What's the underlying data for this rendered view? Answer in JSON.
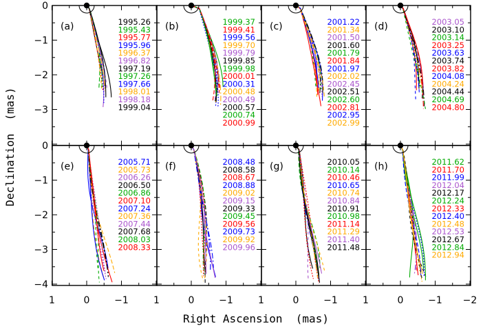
{
  "figure": {
    "xlabel": "Right Ascension  (mas)",
    "ylabel": "Declination  (mas)"
  },
  "chart_data": {
    "type": "line",
    "x_axis": {
      "label": "Right Ascension  (mas)",
      "range": [
        1,
        -2
      ],
      "reversed": true,
      "ticks": [
        1,
        0,
        -1,
        -2
      ],
      "tick_labels_per_panel": [
        "1",
        "0",
        "-1"
      ],
      "last_tick_label": "-2"
    },
    "y_axis": {
      "label": "Declination  (mas)",
      "top_row_range": [
        -4,
        0
      ],
      "bottom_row_range": [
        -4,
        0
      ],
      "ticks_top": [
        0,
        -1,
        -2,
        -3
      ],
      "ticks_bottom": [
        0,
        -1,
        -2,
        -3,
        -4
      ]
    },
    "core_marker": {
      "x": 0,
      "y": 0,
      "shape": "filled-circle-with-semicircle"
    },
    "grid": false,
    "panels": [
      {
        "id": "a",
        "label": "(a)",
        "epochs": [
          {
            "t": "1995.26",
            "color": "#000000"
          },
          {
            "t": "1995.43",
            "color": "#00aa00"
          },
          {
            "t": "1995.77",
            "color": "#ff0000"
          },
          {
            "t": "1995.96",
            "color": "#0000ff"
          },
          {
            "t": "1996.37",
            "color": "#ffaa00"
          },
          {
            "t": "1996.82",
            "color": "#aa55cc"
          },
          {
            "t": "1997.19",
            "color": "#000000"
          },
          {
            "t": "1997.26",
            "color": "#00aa00"
          },
          {
            "t": "1997.66",
            "color": "#0000ff"
          },
          {
            "t": "1998.01",
            "color": "#ffaa00"
          },
          {
            "t": "1998.18",
            "color": "#aa55cc"
          },
          {
            "t": "1999.04",
            "color": "#000000"
          }
        ]
      },
      {
        "id": "b",
        "label": "(b)",
        "epochs": [
          {
            "t": "1999.37",
            "color": "#00aa00"
          },
          {
            "t": "1999.41",
            "color": "#ff0000"
          },
          {
            "t": "1999.56",
            "color": "#0000ff"
          },
          {
            "t": "1999.70",
            "color": "#ffaa00"
          },
          {
            "t": "1999.79",
            "color": "#aa55cc"
          },
          {
            "t": "1999.85",
            "color": "#000000"
          },
          {
            "t": "1999.98",
            "color": "#00aa00"
          },
          {
            "t": "2000.01",
            "color": "#ff0000"
          },
          {
            "t": "2000.31",
            "color": "#0000ff"
          },
          {
            "t": "2000.48",
            "color": "#ffaa00"
          },
          {
            "t": "2000.49",
            "color": "#aa55cc"
          },
          {
            "t": "2000.57",
            "color": "#000000"
          },
          {
            "t": "2000.74",
            "color": "#00aa00"
          },
          {
            "t": "2000.99",
            "color": "#ff0000"
          }
        ]
      },
      {
        "id": "c",
        "label": "(c)",
        "epochs": [
          {
            "t": "2001.22",
            "color": "#0000ff"
          },
          {
            "t": "2001.34",
            "color": "#ffaa00"
          },
          {
            "t": "2001.50",
            "color": "#aa55cc"
          },
          {
            "t": "2001.60",
            "color": "#000000"
          },
          {
            "t": "2001.79",
            "color": "#00aa00"
          },
          {
            "t": "2001.84",
            "color": "#ff0000"
          },
          {
            "t": "2001.97",
            "color": "#0000ff"
          },
          {
            "t": "2002.02",
            "color": "#ffaa00"
          },
          {
            "t": "2002.45",
            "color": "#aa55cc"
          },
          {
            "t": "2002.51",
            "color": "#000000"
          },
          {
            "t": "2002.60",
            "color": "#00aa00"
          },
          {
            "t": "2002.81",
            "color": "#ff0000"
          },
          {
            "t": "2002.95",
            "color": "#0000ff"
          },
          {
            "t": "2002.99",
            "color": "#ffaa00"
          }
        ]
      },
      {
        "id": "d",
        "label": "(d)",
        "epochs": [
          {
            "t": "2003.05",
            "color": "#aa55cc"
          },
          {
            "t": "2003.10",
            "color": "#000000"
          },
          {
            "t": "2003.14",
            "color": "#00aa00"
          },
          {
            "t": "2003.25",
            "color": "#ff0000"
          },
          {
            "t": "2003.63",
            "color": "#0000ff"
          },
          {
            "t": "2003.74",
            "color": "#000000"
          },
          {
            "t": "2003.82",
            "color": "#ff0000"
          },
          {
            "t": "2004.08",
            "color": "#0000ff"
          },
          {
            "t": "2004.24",
            "color": "#ffaa00"
          },
          {
            "t": "2004.44",
            "color": "#000000"
          },
          {
            "t": "2004.69",
            "color": "#00aa00"
          },
          {
            "t": "2004.80",
            "color": "#ff0000"
          }
        ]
      },
      {
        "id": "e",
        "label": "(e)",
        "epochs": [
          {
            "t": "2005.71",
            "color": "#0000ff"
          },
          {
            "t": "2005.73",
            "color": "#ffaa00"
          },
          {
            "t": "2006.26",
            "color": "#aa55cc"
          },
          {
            "t": "2006.50",
            "color": "#000000"
          },
          {
            "t": "2006.86",
            "color": "#00aa00"
          },
          {
            "t": "2007.10",
            "color": "#ff0000"
          },
          {
            "t": "2007.24",
            "color": "#0000ff"
          },
          {
            "t": "2007.36",
            "color": "#ffaa00"
          },
          {
            "t": "2007.44",
            "color": "#aa55cc"
          },
          {
            "t": "2007.68",
            "color": "#000000"
          },
          {
            "t": "2008.03",
            "color": "#00aa00"
          },
          {
            "t": "2008.33",
            "color": "#ff0000"
          }
        ]
      },
      {
        "id": "f",
        "label": "(f)",
        "epochs": [
          {
            "t": "2008.48",
            "color": "#0000ff"
          },
          {
            "t": "2008.58",
            "color": "#000000"
          },
          {
            "t": "2008.67",
            "color": "#ff0000"
          },
          {
            "t": "2008.88",
            "color": "#0000ff"
          },
          {
            "t": "2009.02",
            "color": "#ffaa00"
          },
          {
            "t": "2009.15",
            "color": "#aa55cc"
          },
          {
            "t": "2009.33",
            "color": "#000000"
          },
          {
            "t": "2009.45",
            "color": "#00aa00"
          },
          {
            "t": "2009.56",
            "color": "#ff0000"
          },
          {
            "t": "2009.73",
            "color": "#0000ff"
          },
          {
            "t": "2009.92",
            "color": "#ffaa00"
          },
          {
            "t": "2009.96",
            "color": "#aa55cc"
          }
        ]
      },
      {
        "id": "g",
        "label": "(g)",
        "epochs": [
          {
            "t": "2010.05",
            "color": "#000000"
          },
          {
            "t": "2010.14",
            "color": "#00aa00"
          },
          {
            "t": "2010.46",
            "color": "#ff0000"
          },
          {
            "t": "2010.65",
            "color": "#0000ff"
          },
          {
            "t": "2010.74",
            "color": "#ffaa00"
          },
          {
            "t": "2010.84",
            "color": "#aa55cc"
          },
          {
            "t": "2010.91",
            "color": "#000000"
          },
          {
            "t": "2010.98",
            "color": "#00aa00"
          },
          {
            "t": "2011.14",
            "color": "#ff0000"
          },
          {
            "t": "2011.29",
            "color": "#ffaa00"
          },
          {
            "t": "2011.40",
            "color": "#aa55cc"
          },
          {
            "t": "2011.48",
            "color": "#000000"
          }
        ]
      },
      {
        "id": "h",
        "label": "(h)",
        "epochs": [
          {
            "t": "2011.62",
            "color": "#00aa00"
          },
          {
            "t": "2011.70",
            "color": "#ff0000"
          },
          {
            "t": "2011.99",
            "color": "#0000ff"
          },
          {
            "t": "2012.04",
            "color": "#aa55cc"
          },
          {
            "t": "2012.17",
            "color": "#000000"
          },
          {
            "t": "2012.24",
            "color": "#00aa00"
          },
          {
            "t": "2012.33",
            "color": "#ff0000"
          },
          {
            "t": "2012.40",
            "color": "#0000ff"
          },
          {
            "t": "2012.48",
            "color": "#ffaa00"
          },
          {
            "t": "2012.53",
            "color": "#aa55cc"
          },
          {
            "t": "2012.67",
            "color": "#000000"
          },
          {
            "t": "2012.84",
            "color": "#00aa00"
          },
          {
            "t": "2012.94",
            "color": "#ffaa00"
          }
        ]
      }
    ]
  }
}
